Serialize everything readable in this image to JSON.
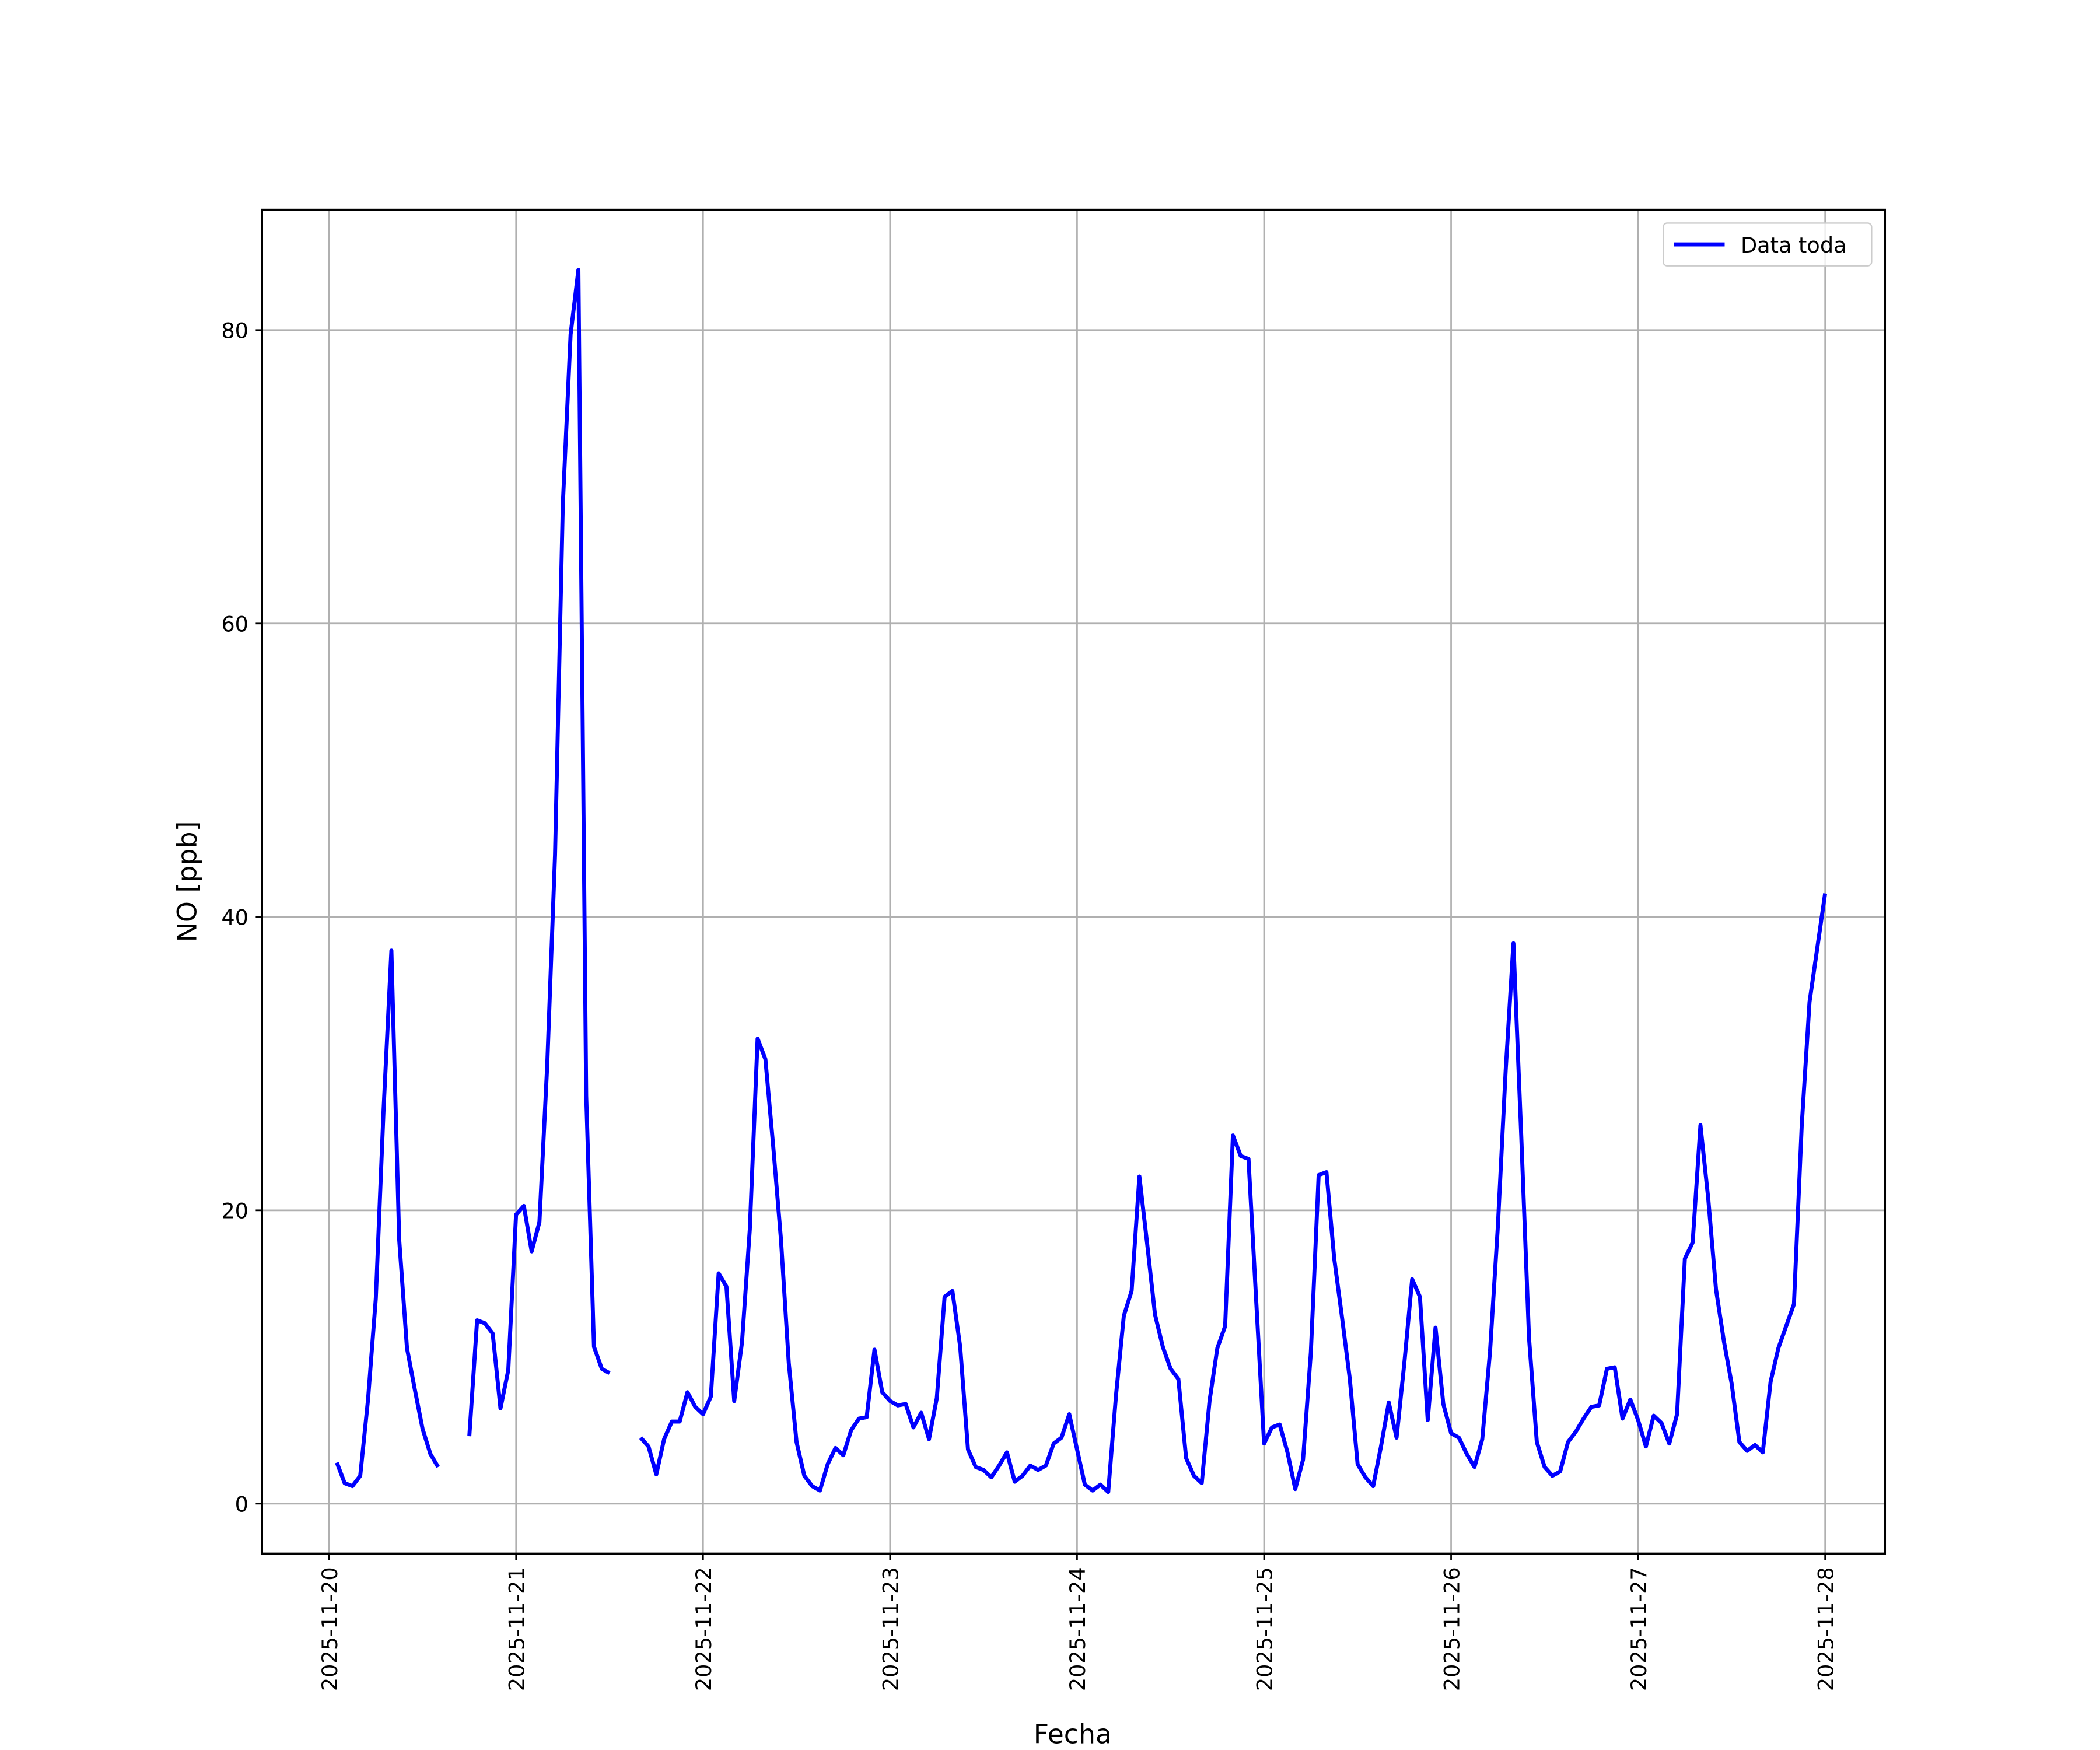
{
  "chart_data": {
    "type": "line",
    "xlabel": "Fecha",
    "ylabel": "NO [ppb]",
    "x": [
      "2025-11-20 01:00",
      "2025-11-20 02:00",
      "2025-11-20 03:00",
      "2025-11-20 04:00",
      "2025-11-20 05:00",
      "2025-11-20 06:00",
      "2025-11-20 07:00",
      "2025-11-20 08:00",
      "2025-11-20 09:00",
      "2025-11-20 10:00",
      "2025-11-20 11:00",
      "2025-11-20 12:00",
      "2025-11-20 13:00",
      "2025-11-20 14:00",
      "2025-11-20 15:00",
      "2025-11-20 16:00",
      "2025-11-20 17:00",
      "2025-11-20 18:00",
      "2025-11-20 19:00",
      "2025-11-20 20:00",
      "2025-11-20 21:00",
      "2025-11-20 22:00",
      "2025-11-20 23:00",
      "2025-11-21 00:00",
      "2025-11-21 01:00",
      "2025-11-21 02:00",
      "2025-11-21 03:00",
      "2025-11-21 04:00",
      "2025-11-21 05:00",
      "2025-11-21 06:00",
      "2025-11-21 07:00",
      "2025-11-21 08:00",
      "2025-11-21 09:00",
      "2025-11-21 10:00",
      "2025-11-21 11:00",
      "2025-11-21 12:00",
      "2025-11-21 13:00",
      "2025-11-21 14:00",
      "2025-11-21 15:00",
      "2025-11-21 16:00",
      "2025-11-21 17:00",
      "2025-11-21 18:00",
      "2025-11-21 19:00",
      "2025-11-21 20:00",
      "2025-11-21 21:00",
      "2025-11-21 22:00",
      "2025-11-21 23:00",
      "2025-11-22 00:00",
      "2025-11-22 01:00",
      "2025-11-22 02:00",
      "2025-11-22 03:00",
      "2025-11-22 04:00",
      "2025-11-22 05:00",
      "2025-11-22 06:00",
      "2025-11-22 07:00",
      "2025-11-22 08:00",
      "2025-11-22 09:00",
      "2025-11-22 10:00",
      "2025-11-22 11:00",
      "2025-11-22 12:00",
      "2025-11-22 13:00",
      "2025-11-22 14:00",
      "2025-11-22 15:00",
      "2025-11-22 16:00",
      "2025-11-22 17:00",
      "2025-11-22 18:00",
      "2025-11-22 19:00",
      "2025-11-22 20:00",
      "2025-11-22 21:00",
      "2025-11-22 22:00",
      "2025-11-22 23:00",
      "2025-11-23 00:00",
      "2025-11-23 01:00",
      "2025-11-23 02:00",
      "2025-11-23 03:00",
      "2025-11-23 04:00",
      "2025-11-23 05:00",
      "2025-11-23 06:00",
      "2025-11-23 07:00",
      "2025-11-23 08:00",
      "2025-11-23 09:00",
      "2025-11-23 10:00",
      "2025-11-23 11:00",
      "2025-11-23 12:00",
      "2025-11-23 13:00",
      "2025-11-23 14:00",
      "2025-11-23 15:00",
      "2025-11-23 16:00",
      "2025-11-23 17:00",
      "2025-11-23 18:00",
      "2025-11-23 19:00",
      "2025-11-23 20:00",
      "2025-11-23 21:00",
      "2025-11-23 22:00",
      "2025-11-23 23:00",
      "2025-11-24 00:00",
      "2025-11-24 01:00",
      "2025-11-24 02:00",
      "2025-11-24 03:00",
      "2025-11-24 04:00",
      "2025-11-24 05:00",
      "2025-11-24 06:00",
      "2025-11-24 07:00",
      "2025-11-24 08:00",
      "2025-11-24 09:00",
      "2025-11-24 10:00",
      "2025-11-24 11:00",
      "2025-11-24 12:00",
      "2025-11-24 13:00",
      "2025-11-24 14:00",
      "2025-11-24 15:00",
      "2025-11-24 16:00",
      "2025-11-24 17:00",
      "2025-11-24 18:00",
      "2025-11-24 19:00",
      "2025-11-24 20:00",
      "2025-11-24 21:00",
      "2025-11-24 22:00",
      "2025-11-24 23:00",
      "2025-11-25 00:00",
      "2025-11-25 01:00",
      "2025-11-25 02:00",
      "2025-11-25 03:00",
      "2025-11-25 04:00",
      "2025-11-25 05:00",
      "2025-11-25 06:00",
      "2025-11-25 07:00",
      "2025-11-25 08:00",
      "2025-11-25 09:00",
      "2025-11-25 10:00",
      "2025-11-25 11:00",
      "2025-11-25 12:00",
      "2025-11-25 13:00",
      "2025-11-25 14:00",
      "2025-11-25 15:00",
      "2025-11-25 16:00",
      "2025-11-25 17:00",
      "2025-11-25 18:00",
      "2025-11-25 19:00",
      "2025-11-25 20:00",
      "2025-11-25 21:00",
      "2025-11-25 22:00",
      "2025-11-25 23:00",
      "2025-11-26 00:00",
      "2025-11-26 01:00",
      "2025-11-26 02:00",
      "2025-11-26 03:00",
      "2025-11-26 04:00",
      "2025-11-26 05:00",
      "2025-11-26 06:00",
      "2025-11-26 07:00",
      "2025-11-26 08:00",
      "2025-11-26 09:00",
      "2025-11-26 10:00",
      "2025-11-26 11:00",
      "2025-11-26 12:00",
      "2025-11-26 13:00",
      "2025-11-26 14:00",
      "2025-11-26 15:00",
      "2025-11-26 16:00",
      "2025-11-26 17:00",
      "2025-11-26 18:00",
      "2025-11-26 19:00",
      "2025-11-26 20:00",
      "2025-11-26 21:00",
      "2025-11-26 22:00",
      "2025-11-26 23:00",
      "2025-11-27 00:00",
      "2025-11-27 01:00",
      "2025-11-27 02:00",
      "2025-11-27 03:00",
      "2025-11-27 04:00",
      "2025-11-27 05:00",
      "2025-11-27 06:00",
      "2025-11-27 07:00",
      "2025-11-27 08:00",
      "2025-11-27 09:00",
      "2025-11-27 10:00",
      "2025-11-27 11:00",
      "2025-11-27 12:00",
      "2025-11-27 13:00",
      "2025-11-27 14:00",
      "2025-11-27 15:00",
      "2025-11-27 16:00",
      "2025-11-27 17:00",
      "2025-11-27 18:00",
      "2025-11-27 19:00",
      "2025-11-27 20:00",
      "2025-11-27 21:00",
      "2025-11-27 22:00",
      "2025-11-27 23:00",
      "2025-11-28 00:00"
    ],
    "series": [
      {
        "name": "Data toda",
        "color": "#0000ff",
        "values": [
          2.8,
          1.4,
          1.2,
          1.9,
          7.1,
          14.0,
          26.9,
          37.7,
          18.0,
          10.6,
          7.8,
          5.1,
          3.4,
          2.5,
          null,
          null,
          null,
          4.6,
          12.5,
          12.3,
          11.6,
          6.5,
          9.1,
          19.7,
          20.3,
          17.2,
          19.2,
          29.9,
          44.2,
          68.1,
          79.7,
          84.1,
          27.8,
          10.7,
          9.2,
          8.9,
          null,
          null,
          null,
          4.5,
          3.9,
          2.0,
          4.4,
          5.6,
          5.6,
          7.6,
          6.6,
          6.1,
          7.3,
          15.7,
          14.8,
          7.0,
          11.0,
          18.7,
          31.7,
          30.3,
          24.4,
          18.0,
          9.6,
          4.2,
          1.9,
          1.2,
          0.9,
          2.7,
          3.8,
          3.3,
          5.0,
          5.8,
          5.9,
          10.5,
          7.6,
          7.0,
          6.7,
          6.8,
          5.2,
          6.2,
          4.4,
          7.2,
          14.1,
          14.5,
          10.7,
          3.7,
          2.5,
          2.3,
          1.8,
          2.6,
          3.5,
          1.5,
          1.9,
          2.6,
          2.3,
          2.6,
          4.1,
          4.5,
          6.1,
          3.7,
          1.3,
          0.9,
          1.3,
          0.8,
          7.4,
          12.8,
          14.5,
          22.3,
          17.7,
          12.9,
          10.7,
          9.2,
          8.5,
          3.1,
          1.9,
          1.4,
          7.0,
          10.6,
          12.1,
          25.1,
          23.7,
          23.5,
          13.7,
          4.1,
          5.2,
          5.4,
          3.5,
          1.0,
          3.0,
          10.3,
          22.4,
          22.6,
          16.7,
          12.7,
          8.5,
          2.7,
          1.8,
          1.2,
          3.9,
          6.9,
          4.5,
          9.6,
          15.3,
          14.1,
          5.7,
          12.0,
          6.8,
          4.8,
          4.5,
          3.4,
          2.5,
          4.4,
          10.4,
          18.9,
          29.5,
          38.2,
          25.1,
          11.3,
          4.2,
          2.5,
          1.9,
          2.2,
          4.2,
          4.9,
          5.8,
          6.6,
          6.7,
          9.2,
          9.3,
          5.8,
          7.1,
          5.7,
          3.9,
          6.0,
          5.5,
          4.1,
          6.1,
          16.7,
          17.8,
          25.8,
          20.8,
          14.6,
          11.1,
          8.2,
          4.2,
          3.6,
          4.0,
          3.5,
          8.3,
          10.6,
          12.1,
          13.6,
          25.8,
          34.2,
          37.9,
          41.6
        ]
      }
    ],
    "xlim": [
      "2025-11-19 15:22",
      "2025-11-28 07:41"
    ],
    "xticks": [
      "2025-11-20",
      "2025-11-21",
      "2025-11-22",
      "2025-11-23",
      "2025-11-24",
      "2025-11-25",
      "2025-11-26",
      "2025-11-27",
      "2025-11-28"
    ],
    "ylim": [
      -3.4,
      88.2
    ],
    "yticks": [
      0,
      20,
      40,
      60,
      80
    ],
    "grid": true,
    "legend": "upper right"
  }
}
